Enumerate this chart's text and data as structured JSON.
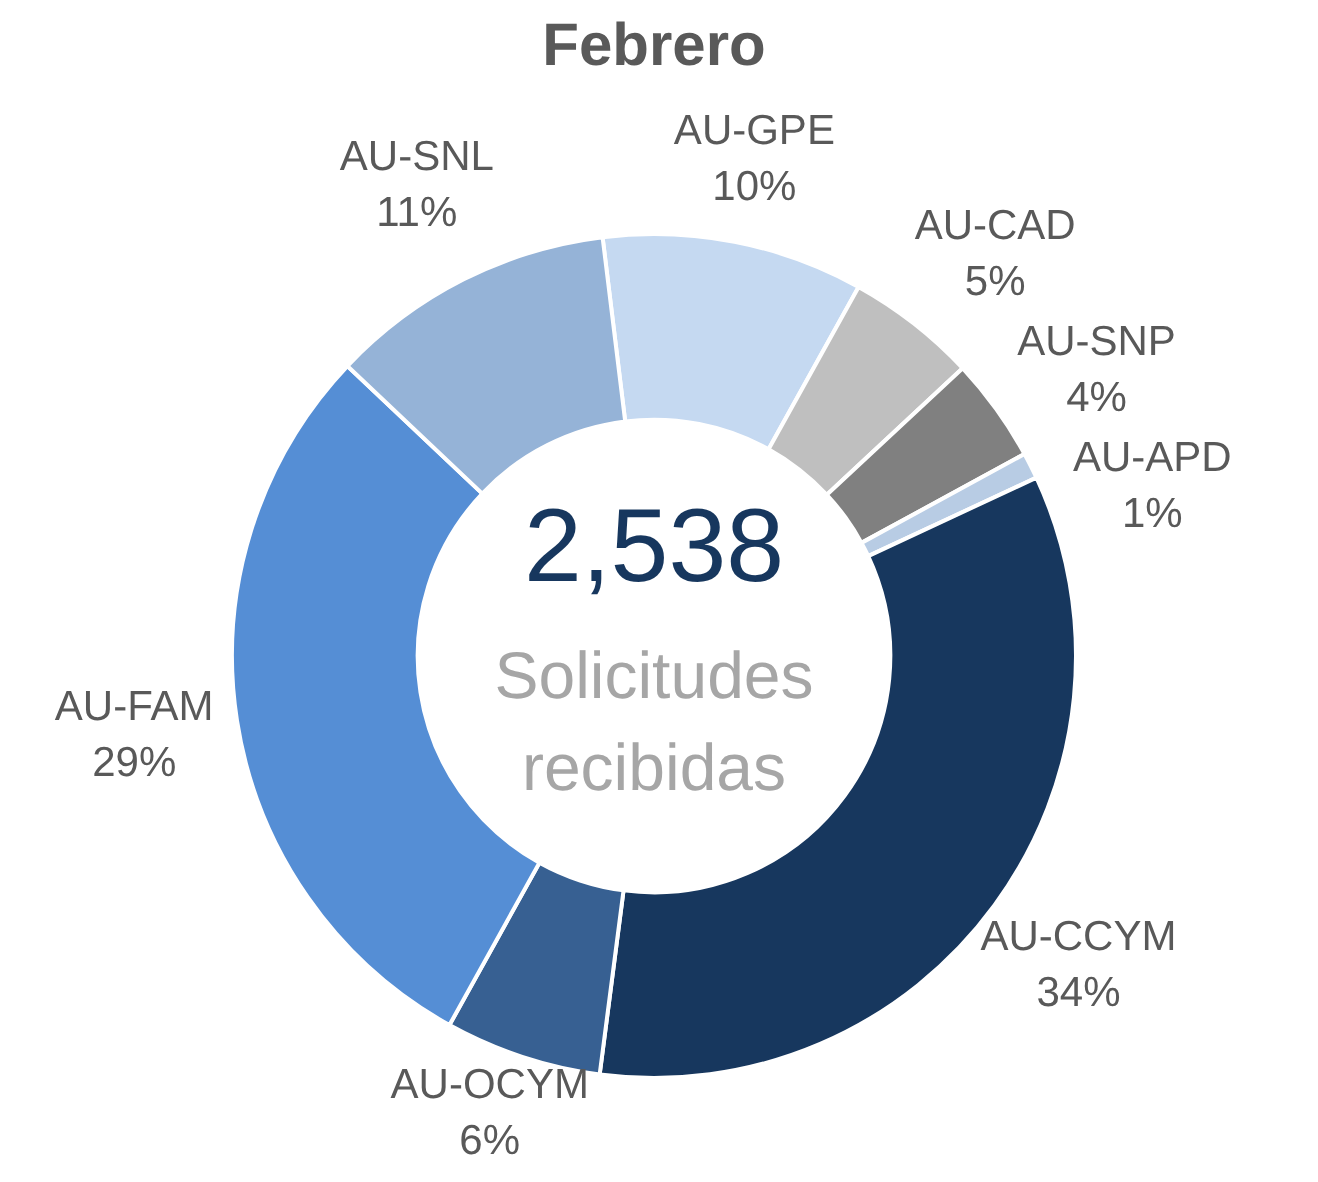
{
  "chart_data": {
    "type": "donut",
    "title": "Febrero",
    "categories": [
      "AU-GPE",
      "AU-CAD",
      "AU-SNP",
      "AU-APD",
      "AU-CCYM",
      "AU-OCYM",
      "AU-FAM",
      "AU-SNL"
    ],
    "values": [
      10,
      5,
      4,
      1,
      34,
      6,
      29,
      11
    ],
    "value_labels": [
      "10%",
      "5%",
      "4%",
      "1%",
      "34%",
      "6%",
      "29%",
      "11%"
    ],
    "colors": [
      "#c5d9f1",
      "#bfbfbf",
      "#808080",
      "#b8cce4",
      "#17375e",
      "#376092",
      "#558ed5",
      "#95b3d7"
    ],
    "annotations": [
      "2,538",
      "Solicitudes recibidas"
    ],
    "legend": false
  }
}
